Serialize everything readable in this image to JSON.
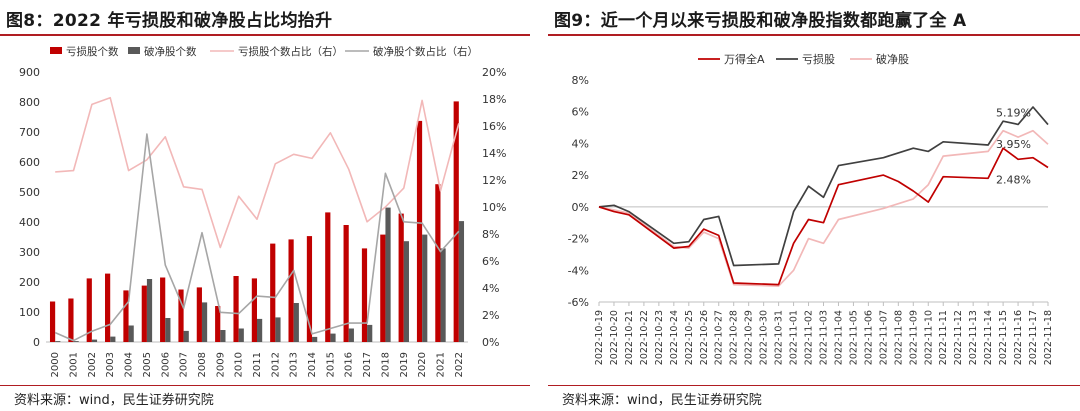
{
  "left": {
    "title": "图8：2022 年亏损股和破净股占比均抬升",
    "source": "资料来源：wind，民生证券研究院"
  },
  "right": {
    "title": "图9：近一个月以来亏损股和破净股指数都跑赢了全 A",
    "source": "资料来源：wind，民生证券研究院"
  },
  "colors": {
    "red": "#c00000",
    "dark": "#595959",
    "pink": "#f2b8b8",
    "gray": "#a6a6a6",
    "rule": "#b01d22"
  },
  "chart_data": [
    {
      "type": "bar",
      "legend_position": "top",
      "categories": [
        "2000",
        "2001",
        "2002",
        "2003",
        "2004",
        "2005",
        "2006",
        "2007",
        "2008",
        "2009",
        "2010",
        "2011",
        "2012",
        "2013",
        "2014",
        "2015",
        "2016",
        "2017",
        "2018",
        "2019",
        "2020",
        "2021",
        "2022"
      ],
      "series": [
        {
          "name": "亏损股个数",
          "kind": "bar",
          "axis": "left",
          "color": "#c00000",
          "values": [
            135,
            145,
            212,
            228,
            172,
            188,
            215,
            175,
            182,
            120,
            220,
            212,
            328,
            342,
            353,
            432,
            390,
            312,
            358,
            428,
            737,
            526,
            802
          ]
        },
        {
          "name": "破净股个数",
          "kind": "bar",
          "axis": "left",
          "color": "#595959",
          "values": [
            3,
            3,
            8,
            18,
            55,
            210,
            80,
            37,
            132,
            40,
            45,
            77,
            82,
            130,
            17,
            28,
            45,
            57,
            448,
            336,
            358,
            312,
            403
          ]
        },
        {
          "name": "亏损股个数占比（右）",
          "kind": "line",
          "axis": "right",
          "color": "#f2b8b8",
          "values": [
            12.6,
            12.7,
            17.6,
            18.1,
            12.7,
            13.5,
            15.2,
            11.5,
            11.3,
            7.0,
            10.8,
            9.1,
            13.2,
            13.9,
            13.6,
            15.5,
            12.8,
            8.9,
            10.0,
            11.4,
            17.9,
            11.2,
            16.2
          ]
        },
        {
          "name": "破净股个数占比（右）",
          "kind": "line",
          "axis": "right",
          "color": "#a6a6a6",
          "values": [
            0.7,
            0.1,
            0.8,
            1.3,
            3.0,
            15.4,
            5.7,
            2.5,
            8.1,
            2.2,
            2.1,
            3.4,
            3.3,
            5.3,
            0.6,
            1.0,
            1.4,
            1.4,
            12.5,
            8.9,
            8.8,
            6.7,
            8.2
          ]
        }
      ],
      "y_left": {
        "min": 0,
        "max": 900,
        "ticks": [
          "0",
          "100",
          "200",
          "300",
          "400",
          "500",
          "600",
          "700",
          "800",
          "900"
        ]
      },
      "y_right": {
        "min": 0,
        "max": 20,
        "ticks": [
          "0%",
          "2%",
          "4%",
          "6%",
          "8%",
          "10%",
          "12%",
          "14%",
          "16%",
          "18%",
          "20%"
        ]
      },
      "grid": false
    },
    {
      "type": "line",
      "legend_position": "top",
      "x": [
        "2022-10-19",
        "2022-10-20",
        "2022-10-21",
        "2022-10-22",
        "2022-10-23",
        "2022-10-24",
        "2022-10-25",
        "2022-10-26",
        "2022-10-27",
        "2022-10-28",
        "2022-10-29",
        "2022-10-30",
        "2022-10-31",
        "2022-11-01",
        "2022-11-02",
        "2022-11-03",
        "2022-11-04",
        "2022-11-05",
        "2022-11-06",
        "2022-11-07",
        "2022-11-08",
        "2022-11-09",
        "2022-11-10",
        "2022-11-11",
        "2022-11-12",
        "2022-11-13",
        "2022-11-14",
        "2022-11-15",
        "2022-11-16",
        "2022-11-17",
        "2022-11-18"
      ],
      "series": [
        {
          "name": "万得全A",
          "color": "#c00000",
          "end_label": "2.48%",
          "points": [
            [
              "2022-10-19",
              0.0
            ],
            [
              "2022-10-20",
              -0.3
            ],
            [
              "2022-10-21",
              -0.5
            ],
            [
              "2022-10-24",
              -2.6
            ],
            [
              "2022-10-25",
              -2.5
            ],
            [
              "2022-10-26",
              -1.4
            ],
            [
              "2022-10-27",
              -1.8
            ],
            [
              "2022-10-28",
              -4.8
            ],
            [
              "2022-10-31",
              -4.9
            ],
            [
              "2022-11-01",
              -2.3
            ],
            [
              "2022-11-02",
              -0.8
            ],
            [
              "2022-11-03",
              -1.0
            ],
            [
              "2022-11-04",
              1.4
            ],
            [
              "2022-11-07",
              2.0
            ],
            [
              "2022-11-08",
              1.6
            ],
            [
              "2022-11-09",
              1.0
            ],
            [
              "2022-11-10",
              0.3
            ],
            [
              "2022-11-11",
              1.9
            ],
            [
              "2022-11-14",
              1.8
            ],
            [
              "2022-11-15",
              3.7
            ],
            [
              "2022-11-16",
              3.0
            ],
            [
              "2022-11-17",
              3.1
            ],
            [
              "2022-11-18",
              2.48
            ]
          ]
        },
        {
          "name": "亏损股",
          "color": "#404040",
          "end_label": "5.19%",
          "points": [
            [
              "2022-10-19",
              0.0
            ],
            [
              "2022-10-20",
              0.1
            ],
            [
              "2022-10-21",
              -0.3
            ],
            [
              "2022-10-24",
              -2.3
            ],
            [
              "2022-10-25",
              -2.2
            ],
            [
              "2022-10-26",
              -0.8
            ],
            [
              "2022-10-27",
              -0.6
            ],
            [
              "2022-10-28",
              -3.7
            ],
            [
              "2022-10-31",
              -3.6
            ],
            [
              "2022-11-01",
              -0.3
            ],
            [
              "2022-11-02",
              1.3
            ],
            [
              "2022-11-03",
              0.6
            ],
            [
              "2022-11-04",
              2.6
            ],
            [
              "2022-11-07",
              3.1
            ],
            [
              "2022-11-08",
              3.4
            ],
            [
              "2022-11-09",
              3.7
            ],
            [
              "2022-11-10",
              3.5
            ],
            [
              "2022-11-11",
              4.1
            ],
            [
              "2022-11-14",
              3.9
            ],
            [
              "2022-11-15",
              5.4
            ],
            [
              "2022-11-16",
              5.2
            ],
            [
              "2022-11-17",
              6.3
            ],
            [
              "2022-11-18",
              5.19
            ]
          ]
        },
        {
          "name": "破净股",
          "color": "#f2b8b8",
          "end_label": "3.95%",
          "points": [
            [
              "2022-10-19",
              0.0
            ],
            [
              "2022-10-20",
              -0.2
            ],
            [
              "2022-10-21",
              -0.4
            ],
            [
              "2022-10-24",
              -2.5
            ],
            [
              "2022-10-25",
              -2.6
            ],
            [
              "2022-10-26",
              -1.6
            ],
            [
              "2022-10-27",
              -2.0
            ],
            [
              "2022-10-28",
              -4.9
            ],
            [
              "2022-10-31",
              -5.0
            ],
            [
              "2022-11-01",
              -4.0
            ],
            [
              "2022-11-02",
              -2.0
            ],
            [
              "2022-11-03",
              -2.3
            ],
            [
              "2022-11-04",
              -0.8
            ],
            [
              "2022-11-07",
              -0.1
            ],
            [
              "2022-11-08",
              0.2
            ],
            [
              "2022-11-09",
              0.5
            ],
            [
              "2022-11-10",
              1.4
            ],
            [
              "2022-11-11",
              3.2
            ],
            [
              "2022-11-14",
              3.5
            ],
            [
              "2022-11-15",
              4.8
            ],
            [
              "2022-11-16",
              4.4
            ],
            [
              "2022-11-17",
              4.8
            ],
            [
              "2022-11-18",
              3.95
            ]
          ]
        }
      ],
      "y": {
        "min": -6,
        "max": 8,
        "ticks": [
          "-6%",
          "-4%",
          "-2%",
          "0%",
          "2%",
          "4%",
          "6%",
          "8%"
        ]
      },
      "grid": false
    }
  ]
}
